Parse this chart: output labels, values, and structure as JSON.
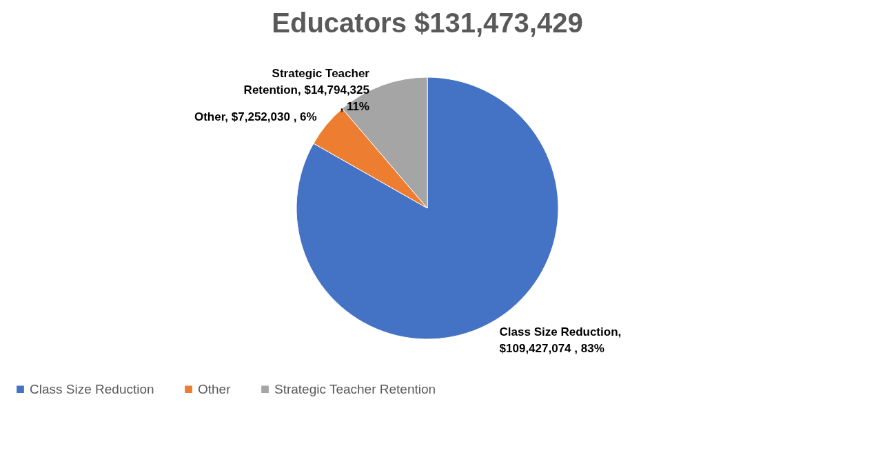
{
  "chart_data": {
    "type": "pie",
    "title": "Educators $131,473,429",
    "categories": [
      "Class Size Reduction",
      "Other",
      "Strategic Teacher Retention"
    ],
    "values": [
      109427074,
      7252030,
      14794325
    ],
    "colors": [
      "#4472c4",
      "#ed7d31",
      "#a5a5a5"
    ],
    "value_labels": [
      "Class Size Reduction,\n$109,427,074 , 83%",
      "Other,  $7,252,030 , 6%",
      "Strategic Teacher\nRetention,  $14,794,325\n, 11%"
    ],
    "legend": "bottom"
  }
}
